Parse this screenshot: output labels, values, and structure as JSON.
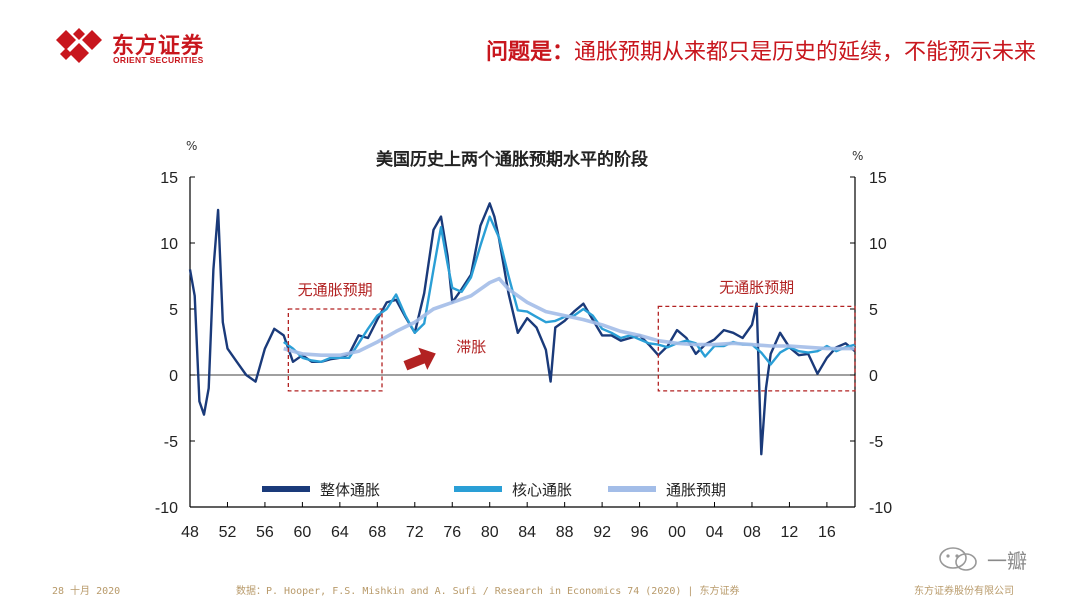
{
  "brand": {
    "name_cn": "东方证券",
    "name_en": "ORIENT SECURITIES",
    "logo_color": "#c8161d"
  },
  "headline": {
    "prefix": "问题是：",
    "text": "通胀预期从来都只是历史的延续，不能预示未来"
  },
  "footer": {
    "date": "28 十月 2020",
    "source": "数据：P. Hooper, F.S. Mishkin and A. Sufi / Research in Economics 74 (2020)  | 东方证券",
    "company": "东方证券股份有限公司"
  },
  "watermark": {
    "text": "一瓣"
  },
  "chart_data": {
    "type": "line",
    "title": "美国历史上两个通胀预期水平的阶段",
    "ylabel_left": "%",
    "ylabel_right": "%",
    "ylim": [
      -10,
      15
    ],
    "yticks": [
      15,
      10,
      5,
      0,
      -5,
      -10
    ],
    "xlim": [
      1948,
      2019
    ],
    "xticks": [
      "48",
      "52",
      "56",
      "60",
      "64",
      "68",
      "72",
      "76",
      "80",
      "84",
      "88",
      "92",
      "96",
      "00",
      "04",
      "08",
      "12",
      "16"
    ],
    "legend_position": "bottom-center",
    "series": [
      {
        "name": "整体通胀",
        "color": "#1a3a7a",
        "x": [
          1948,
          1948.5,
          1949,
          1949.5,
          1950,
          1950.5,
          1951,
          1951.5,
          1952,
          1953,
          1954,
          1955,
          1956,
          1957,
          1958,
          1959,
          1960,
          1961,
          1962,
          1963,
          1964,
          1965,
          1966,
          1967,
          1968,
          1969,
          1970,
          1971,
          1972,
          1973,
          1974,
          1974.8,
          1975.5,
          1976,
          1977,
          1978,
          1979,
          1980,
          1980.5,
          1981,
          1982,
          1983,
          1984,
          1985,
          1986,
          1986.5,
          1987,
          1988,
          1989,
          1990,
          1991,
          1992,
          1993,
          1994,
          1995,
          1996,
          1997,
          1998,
          1999,
          2000,
          2001,
          2002,
          2003,
          2004,
          2005,
          2006,
          2007,
          2008,
          2008.5,
          2009,
          2009.5,
          2010,
          2011,
          2012,
          2013,
          2014,
          2015,
          2016,
          2017,
          2018,
          2019
        ],
        "values": [
          8,
          6,
          -2,
          -3,
          -1,
          8,
          12.5,
          4,
          2,
          1,
          0,
          -0.5,
          2,
          3.5,
          3,
          1,
          1.5,
          1,
          1,
          1.2,
          1.3,
          1.6,
          3,
          2.8,
          4.2,
          5.5,
          5.7,
          4.4,
          3.2,
          6.2,
          11,
          12,
          9,
          5.5,
          6.5,
          7.6,
          11.3,
          13,
          12,
          10.3,
          6.2,
          3.2,
          4.3,
          3.6,
          1.9,
          -0.5,
          3.6,
          4.1,
          4.8,
          5.4,
          4.2,
          3,
          3,
          2.6,
          2.8,
          3,
          2.3,
          1.5,
          2.2,
          3.4,
          2.8,
          1.6,
          2.3,
          2.7,
          3.4,
          3.2,
          2.8,
          3.8,
          5.4,
          -6,
          -1,
          1.6,
          3.2,
          2.1,
          1.5,
          1.6,
          0.1,
          1.3,
          2.1,
          2.4,
          1.8
        ]
      },
      {
        "name": "核心通胀",
        "color": "#2a9fd6",
        "x": [
          1958,
          1959,
          1960,
          1961,
          1962,
          1963,
          1964,
          1965,
          1966,
          1967,
          1968,
          1969,
          1970,
          1971,
          1972,
          1973,
          1974,
          1974.8,
          1975.5,
          1976,
          1977,
          1978,
          1979,
          1980,
          1981,
          1982,
          1983,
          1984,
          1985,
          1986,
          1987,
          1988,
          1989,
          1990,
          1991,
          1992,
          1993,
          1994,
          1995,
          1996,
          1997,
          1998,
          1999,
          2000,
          2001,
          2002,
          2003,
          2004,
          2005,
          2006,
          2007,
          2008,
          2009,
          2010,
          2011,
          2012,
          2013,
          2014,
          2015,
          2016,
          2017,
          2018,
          2019
        ],
        "values": [
          2.5,
          2,
          1.3,
          1.1,
          1,
          1.3,
          1.3,
          1.3,
          2.4,
          3.5,
          4.5,
          5,
          6.1,
          4.5,
          3.2,
          3.9,
          8,
          11.2,
          8.4,
          6.6,
          6.3,
          7.4,
          9.8,
          12,
          10.4,
          7.5,
          4.9,
          4.8,
          4.4,
          4,
          4.1,
          4.4,
          4.5,
          5,
          4.5,
          3.5,
          3.2,
          2.8,
          3,
          2.7,
          2.4,
          2.3,
          2.1,
          2.4,
          2.6,
          2.4,
          1.4,
          2.2,
          2.2,
          2.5,
          2.3,
          2.3,
          1.7,
          0.8,
          1.7,
          2.1,
          1.8,
          1.7,
          1.8,
          2.2,
          1.8,
          2.1,
          2.3
        ]
      },
      {
        "name": "通胀预期",
        "color": "#a3bde8",
        "x": [
          1958,
          1960,
          1962,
          1964,
          1966,
          1968,
          1970,
          1972,
          1974,
          1976,
          1978,
          1980,
          1981,
          1982,
          1984,
          1986,
          1988,
          1990,
          1992,
          1994,
          1996,
          1998,
          2000,
          2002,
          2004,
          2006,
          2008,
          2010,
          2012,
          2014,
          2016,
          2018,
          2019
        ],
        "values": [
          2,
          1.6,
          1.5,
          1.5,
          1.8,
          2.5,
          3.3,
          4,
          5,
          5.5,
          6,
          7,
          7.3,
          6.5,
          5.5,
          4.8,
          4.5,
          4.2,
          3.8,
          3.3,
          3,
          2.6,
          2.4,
          2.3,
          2.3,
          2.4,
          2.3,
          2.2,
          2.2,
          2.1,
          2,
          2,
          2
        ]
      }
    ],
    "annotations": [
      {
        "text": "无通胀预期",
        "x_range": [
          1958.5,
          1968.5
        ],
        "y_range": [
          -1.2,
          5
        ]
      },
      {
        "text": "无通胀预期",
        "x_range": [
          1998,
          2019
        ],
        "y_range": [
          -1.2,
          5.2
        ]
      },
      {
        "text": "滞胀",
        "arrow_from_x": 1971,
        "arrow_to_x": 1974.5,
        "y": 0.7
      }
    ],
    "annotation_color": "#b22222"
  }
}
